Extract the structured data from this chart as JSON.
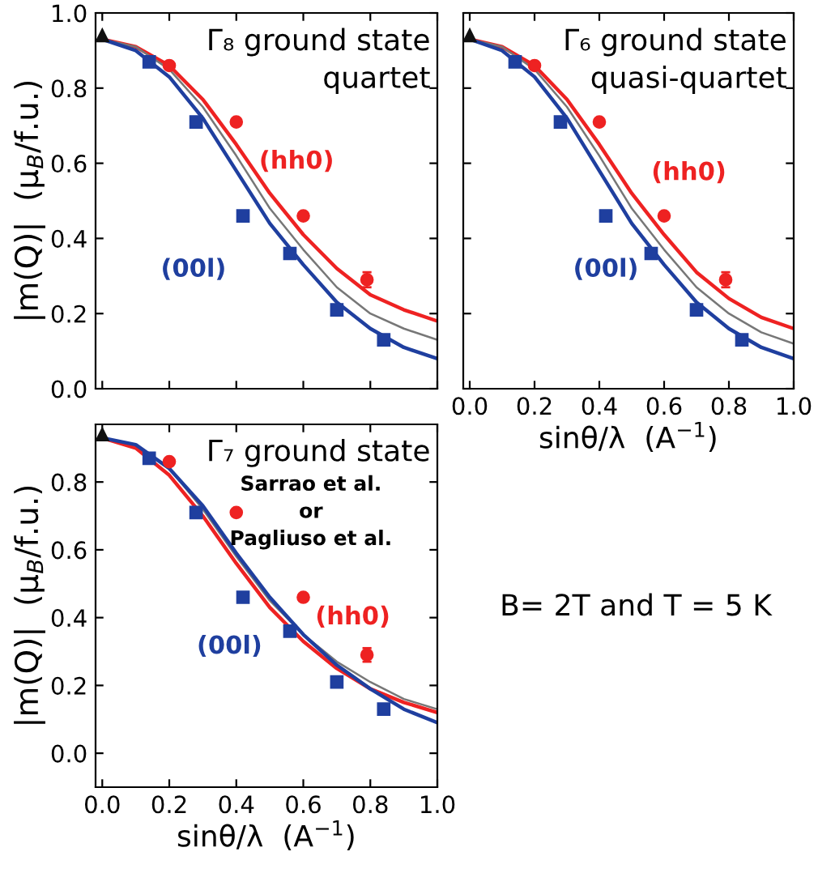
{
  "chart_data": [
    {
      "type": "scatter",
      "title": "Γ₈ ground state",
      "subtitle": "quartet",
      "ylabel": "|m(Q)|  (μ$_{B}$/f.u.)",
      "xlim": [
        -0.02,
        1.0
      ],
      "ylim": [
        0.0,
        1.0
      ],
      "xticks": [
        {
          "value": 0.0,
          "label": null
        },
        {
          "value": 0.2,
          "label": null
        },
        {
          "value": 0.4,
          "label": null
        },
        {
          "value": 0.6,
          "label": null
        },
        {
          "value": 0.8,
          "label": null
        },
        {
          "value": 1.0,
          "label": null
        }
      ],
      "yticks": [
        {
          "value": 0.0,
          "label": "0.0"
        },
        {
          "value": 0.2,
          "label": "0.2"
        },
        {
          "value": 0.4,
          "label": "0.4"
        },
        {
          "value": 0.6,
          "label": "0.6"
        },
        {
          "value": 0.8,
          "label": "0.8"
        },
        {
          "value": 1.0,
          "label": "1.0"
        }
      ],
      "tick_labels": "y",
      "series": [
        {
          "type": "scatter",
          "name": "(hh0)",
          "color": "#ee2222",
          "marker": "circle",
          "x": [
            0.2,
            0.4,
            0.6,
            0.79
          ],
          "values": [
            0.86,
            0.71,
            0.46,
            0.29
          ],
          "errors": [
            null,
            null,
            null,
            0.02
          ]
        },
        {
          "type": "scatter",
          "name": "(00l)",
          "color": "#1f3f9f",
          "marker": "square",
          "x": [
            0.14,
            0.28,
            0.42,
            0.56,
            0.7,
            0.84
          ],
          "values": [
            0.87,
            0.71,
            0.46,
            0.36,
            0.21,
            0.13
          ]
        },
        {
          "type": "scatter",
          "color": "#111111",
          "marker": "triangle",
          "x": [
            0.0
          ],
          "values": [
            0.94
          ]
        },
        {
          "type": "line",
          "color": "#ee2222",
          "x": [
            0,
            0.1,
            0.2,
            0.3,
            0.4,
            0.5,
            0.6,
            0.7,
            0.8,
            0.9,
            1.0
          ],
          "values": [
            0.93,
            0.91,
            0.86,
            0.77,
            0.65,
            0.52,
            0.41,
            0.32,
            0.25,
            0.21,
            0.18
          ]
        },
        {
          "type": "line",
          "color": "#777777",
          "x": [
            0,
            0.1,
            0.2,
            0.3,
            0.4,
            0.5,
            0.6,
            0.7,
            0.8,
            0.9,
            1.0
          ],
          "values": [
            0.93,
            0.91,
            0.85,
            0.75,
            0.62,
            0.48,
            0.37,
            0.27,
            0.2,
            0.16,
            0.13
          ]
        },
        {
          "type": "line",
          "color": "#1f3f9f",
          "x": [
            0,
            0.1,
            0.2,
            0.3,
            0.4,
            0.5,
            0.6,
            0.7,
            0.8,
            0.9,
            1.0
          ],
          "values": [
            0.93,
            0.9,
            0.83,
            0.72,
            0.58,
            0.44,
            0.33,
            0.23,
            0.16,
            0.11,
            0.08
          ]
        }
      ]
    },
    {
      "type": "scatter",
      "title": "Γ₆ ground state",
      "subtitle": "quasi-quartet",
      "xlabel": "sinθ/λ  (A$^{−1}$)",
      "xlim": [
        -0.02,
        1.0
      ],
      "ylim": [
        0.0,
        1.0
      ],
      "xticks": [
        {
          "value": 0.0,
          "label": "0.0"
        },
        {
          "value": 0.2,
          "label": "0.2"
        },
        {
          "value": 0.4,
          "label": "0.4"
        },
        {
          "value": 0.6,
          "label": "0.6"
        },
        {
          "value": 0.8,
          "label": "0.8"
        },
        {
          "value": 1.0,
          "label": "1.0"
        }
      ],
      "yticks": [
        {
          "value": 0.0,
          "label": null
        },
        {
          "value": 0.2,
          "label": null
        },
        {
          "value": 0.4,
          "label": null
        },
        {
          "value": 0.6,
          "label": null
        },
        {
          "value": 0.8,
          "label": null
        },
        {
          "value": 1.0,
          "label": null
        }
      ],
      "tick_labels": "x",
      "series": [
        {
          "type": "scatter",
          "name": "(hh0)",
          "color": "#ee2222",
          "marker": "circle",
          "x": [
            0.2,
            0.4,
            0.6,
            0.79
          ],
          "values": [
            0.86,
            0.71,
            0.46,
            0.29
          ],
          "errors": [
            null,
            null,
            null,
            0.02
          ]
        },
        {
          "type": "scatter",
          "name": "(00l)",
          "color": "#1f3f9f",
          "marker": "square",
          "x": [
            0.14,
            0.28,
            0.42,
            0.56,
            0.7,
            0.84
          ],
          "values": [
            0.87,
            0.71,
            0.46,
            0.36,
            0.21,
            0.13
          ]
        },
        {
          "type": "scatter",
          "color": "#111111",
          "marker": "triangle",
          "x": [
            0.0
          ],
          "values": [
            0.94
          ]
        },
        {
          "type": "line",
          "color": "#ee2222",
          "x": [
            0,
            0.1,
            0.2,
            0.3,
            0.4,
            0.5,
            0.6,
            0.7,
            0.8,
            0.9,
            1.0
          ],
          "values": [
            0.93,
            0.91,
            0.86,
            0.77,
            0.65,
            0.52,
            0.41,
            0.31,
            0.24,
            0.19,
            0.16
          ]
        },
        {
          "type": "line",
          "color": "#777777",
          "x": [
            0,
            0.1,
            0.2,
            0.3,
            0.4,
            0.5,
            0.6,
            0.7,
            0.8,
            0.9,
            1.0
          ],
          "values": [
            0.93,
            0.91,
            0.85,
            0.75,
            0.62,
            0.48,
            0.37,
            0.27,
            0.2,
            0.15,
            0.12
          ]
        },
        {
          "type": "line",
          "color": "#1f3f9f",
          "x": [
            0,
            0.1,
            0.2,
            0.3,
            0.4,
            0.5,
            0.6,
            0.7,
            0.8,
            0.9,
            1.0
          ],
          "values": [
            0.93,
            0.9,
            0.83,
            0.72,
            0.58,
            0.44,
            0.33,
            0.23,
            0.16,
            0.11,
            0.08
          ]
        }
      ]
    },
    {
      "type": "scatter",
      "title": "Γ₇ ground state",
      "subtitle": "Sarrao et al.\nor\nPagliuso et al.",
      "xlabel": "sinθ/λ  (A$^{−1}$)",
      "ylabel": "|m(Q)|  (μ$_{B}$/f.u.)",
      "xlim": [
        -0.02,
        1.0
      ],
      "ylim": [
        -0.1,
        0.97
      ],
      "xticks": [
        {
          "value": 0.0,
          "label": "0.0"
        },
        {
          "value": 0.2,
          "label": "0.2"
        },
        {
          "value": 0.4,
          "label": "0.4"
        },
        {
          "value": 0.6,
          "label": "0.6"
        },
        {
          "value": 0.8,
          "label": "0.8"
        },
        {
          "value": 1.0,
          "label": "1.0"
        }
      ],
      "yticks": [
        {
          "value": 0.0,
          "label": "0.0"
        },
        {
          "value": 0.2,
          "label": "0.2"
        },
        {
          "value": 0.4,
          "label": "0.4"
        },
        {
          "value": 0.6,
          "label": "0.6"
        },
        {
          "value": 0.8,
          "label": "0.8"
        }
      ],
      "series": [
        {
          "type": "scatter",
          "name": "(hh0)",
          "color": "#ee2222",
          "marker": "circle",
          "x": [
            0.2,
            0.4,
            0.6,
            0.79
          ],
          "values": [
            0.86,
            0.71,
            0.46,
            0.29
          ],
          "errors": [
            null,
            null,
            null,
            0.02
          ]
        },
        {
          "type": "scatter",
          "name": "(00l)",
          "color": "#1f3f9f",
          "marker": "square",
          "x": [
            0.14,
            0.28,
            0.42,
            0.56,
            0.7,
            0.84
          ],
          "values": [
            0.87,
            0.71,
            0.46,
            0.36,
            0.21,
            0.13
          ]
        },
        {
          "type": "scatter",
          "color": "#111111",
          "marker": "triangle",
          "x": [
            0.0
          ],
          "values": [
            0.94
          ]
        },
        {
          "type": "line",
          "color": "#777777",
          "x": [
            0,
            0.1,
            0.2,
            0.3,
            0.4,
            0.5,
            0.6,
            0.7,
            0.8,
            0.9,
            1.0
          ],
          "values": [
            0.93,
            0.91,
            0.84,
            0.72,
            0.58,
            0.45,
            0.35,
            0.27,
            0.21,
            0.16,
            0.13
          ]
        },
        {
          "type": "line",
          "color": "#ee2222",
          "x": [
            0,
            0.1,
            0.2,
            0.3,
            0.4,
            0.5,
            0.6,
            0.7,
            0.8,
            0.9,
            1.0
          ],
          "values": [
            0.93,
            0.9,
            0.82,
            0.7,
            0.56,
            0.43,
            0.33,
            0.25,
            0.19,
            0.15,
            0.12
          ]
        },
        {
          "type": "line",
          "color": "#1f3f9f",
          "x": [
            0,
            0.1,
            0.2,
            0.3,
            0.4,
            0.5,
            0.6,
            0.7,
            0.8,
            0.9,
            1.0
          ],
          "values": [
            0.93,
            0.91,
            0.84,
            0.73,
            0.59,
            0.46,
            0.35,
            0.26,
            0.19,
            0.13,
            0.09
          ]
        }
      ]
    },
    {
      "type": "other",
      "annotations": [
        "B= 2T and T = 5 K"
      ]
    }
  ]
}
